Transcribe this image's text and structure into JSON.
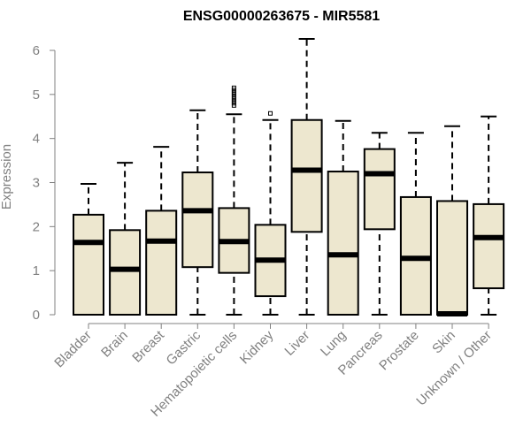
{
  "chart_data": {
    "type": "boxplot",
    "title": "ENSG00000263675 - MIR5581",
    "ylabel": "Expression",
    "xlabel": "",
    "ylim": [
      0,
      6.3
    ],
    "yticks": [
      0,
      1,
      2,
      3,
      4,
      5,
      6
    ],
    "grid": false,
    "box_fill": "#ede7cf",
    "categories": [
      "Bladder",
      "Brain",
      "Breast",
      "Gastric",
      "Hematopoietic cells",
      "Kidney",
      "Liver",
      "Lung",
      "Pancreas",
      "Prostate",
      "Skin",
      "Unknown / Other"
    ],
    "boxes": [
      {
        "min": 0,
        "q1": 0,
        "median": 1.64,
        "q3": 2.27,
        "max": 2.97,
        "outliers": []
      },
      {
        "min": 0,
        "q1": 0,
        "median": 1.03,
        "q3": 1.92,
        "max": 3.45,
        "outliers": []
      },
      {
        "min": 0,
        "q1": 0,
        "median": 1.67,
        "q3": 2.36,
        "max": 3.81,
        "outliers": []
      },
      {
        "min": 0,
        "q1": 1.08,
        "median": 2.36,
        "q3": 3.23,
        "max": 4.64,
        "outliers": []
      },
      {
        "min": 0,
        "q1": 0.95,
        "median": 1.66,
        "q3": 2.42,
        "max": 4.55,
        "outliers": [
          4.75,
          4.8,
          4.85,
          4.9,
          4.95,
          5.0,
          5.05,
          5.1,
          5.15
        ]
      },
      {
        "min": 0,
        "q1": 0.42,
        "median": 1.24,
        "q3": 2.04,
        "max": 4.42,
        "outliers": [
          4.57
        ]
      },
      {
        "min": 0,
        "q1": 1.88,
        "median": 3.28,
        "q3": 4.42,
        "max": 6.26,
        "outliers": []
      },
      {
        "min": 0,
        "q1": 0,
        "median": 1.36,
        "q3": 3.25,
        "max": 4.4,
        "outliers": []
      },
      {
        "min": 0,
        "q1": 1.94,
        "median": 3.2,
        "q3": 3.76,
        "max": 4.13,
        "outliers": []
      },
      {
        "min": 0,
        "q1": 0,
        "median": 1.28,
        "q3": 2.67,
        "max": 4.13,
        "outliers": []
      },
      {
        "min": 0,
        "q1": 0,
        "median": 0.02,
        "q3": 2.58,
        "max": 4.28,
        "outliers": []
      },
      {
        "min": 0,
        "q1": 0.6,
        "median": 1.75,
        "q3": 2.51,
        "max": 4.5,
        "outliers": []
      }
    ]
  }
}
